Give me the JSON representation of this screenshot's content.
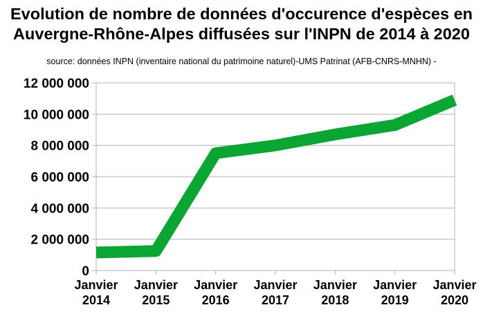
{
  "title_line1": "Evolution de nombre de données d'occurence d'espèces en",
  "title_line2": "Auvergne-Rhône-Alpes diffusées sur l'INPN de 2014 à 2020",
  "subtitle": "source: données INPN (inventaire national du patrimoine naturel)-UMS Patrinat (AFB-CNRS-MNHN) -",
  "chart_data": {
    "type": "line",
    "title": "Evolution de nombre de données d'occurence d'espèces en Auvergne-Rhône-Alpes diffusées sur l'INPN de 2014 à 2020",
    "subtitle": "source: données INPN (inventaire national du patrimoine naturel)-UMS Patrinat (AFB-CNRS-MNHN) -",
    "categories": [
      [
        "Janvier",
        "2014"
      ],
      [
        "Janvier",
        "2015"
      ],
      [
        "Janvier",
        "2016"
      ],
      [
        "Janvier",
        "2017"
      ],
      [
        "Janvier",
        "2018"
      ],
      [
        "Janvier",
        "2019"
      ],
      [
        "Janvier",
        "2020"
      ]
    ],
    "values": [
      1150000,
      1250000,
      7500000,
      8000000,
      8700000,
      9300000,
      10900000
    ],
    "ylim": [
      0,
      12000000
    ],
    "yticks": [
      0,
      2000000,
      4000000,
      6000000,
      8000000,
      10000000,
      12000000
    ],
    "ytick_labels": [
      "0",
      "2 000 000",
      "4 000 000",
      "6 000 000",
      "8 000 000",
      "10 000 000",
      "12 000 000"
    ],
    "grid": true,
    "legend": "none",
    "color": "#0aa532"
  }
}
